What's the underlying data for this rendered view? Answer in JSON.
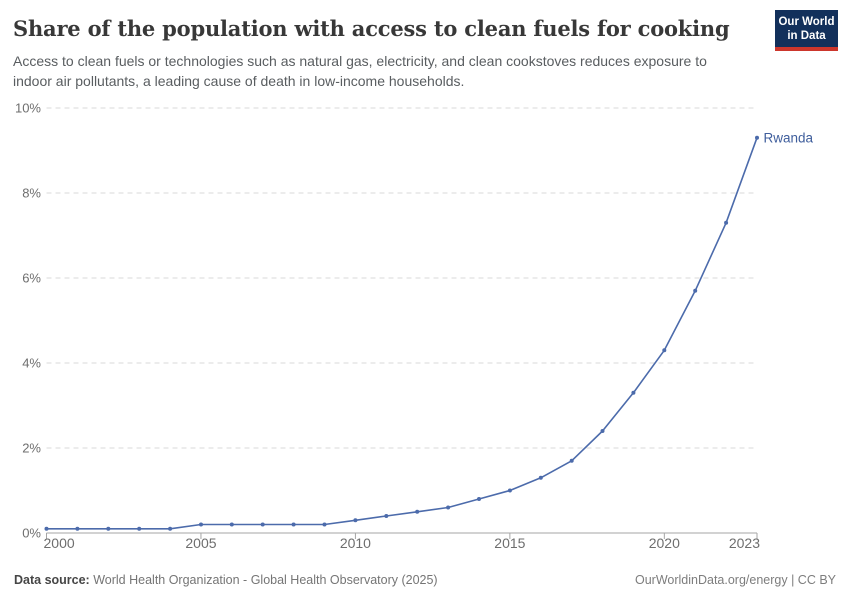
{
  "header": {
    "title": "Share of the population with access to clean fuels for cooking",
    "subtitle": "Access to clean fuels or technologies such as natural gas, electricity, and clean cookstoves reduces exposure to indoor air pollutants, a leading cause of death in low-income households.",
    "logo": {
      "line1": "Our World",
      "line2": "in Data",
      "bg_color": "#12305b",
      "accent_color": "#cc362c"
    }
  },
  "chart_data": {
    "type": "line",
    "title": "Share of the population with access to clean fuels for cooking",
    "x": [
      2000,
      2001,
      2002,
      2003,
      2004,
      2005,
      2006,
      2007,
      2008,
      2009,
      2010,
      2011,
      2012,
      2013,
      2014,
      2015,
      2016,
      2017,
      2018,
      2019,
      2020,
      2021,
      2022,
      2023
    ],
    "series": [
      {
        "name": "Rwanda",
        "color": "#4c6bab",
        "label_color": "#3f5e9c",
        "values": [
          0.1,
          0.1,
          0.1,
          0.1,
          0.1,
          0.2,
          0.2,
          0.2,
          0.2,
          0.2,
          0.3,
          0.4,
          0.5,
          0.6,
          0.8,
          1.0,
          1.3,
          1.7,
          2.4,
          3.3,
          4.3,
          5.7,
          7.3,
          9.3
        ]
      }
    ],
    "xlim": [
      2000,
      2023
    ],
    "ylim": [
      0,
      10
    ],
    "x_ticks": [
      2000,
      2005,
      2010,
      2015,
      2020,
      2023
    ],
    "y_ticks": [
      0,
      2,
      4,
      6,
      8,
      10
    ],
    "y_tick_suffix": "%",
    "grid": {
      "style": "dashed",
      "color": "#dadada"
    },
    "axis_color": "#a5a5a5",
    "tick_label_color": "#6e6e6e",
    "legend_position": "end-of-line",
    "xlabel": "",
    "ylabel": ""
  },
  "footer": {
    "source_label": "Data source:",
    "source_text": "World Health Organization - Global Health Observatory (2025)",
    "credit": "OurWorldinData.org/energy | CC BY"
  }
}
